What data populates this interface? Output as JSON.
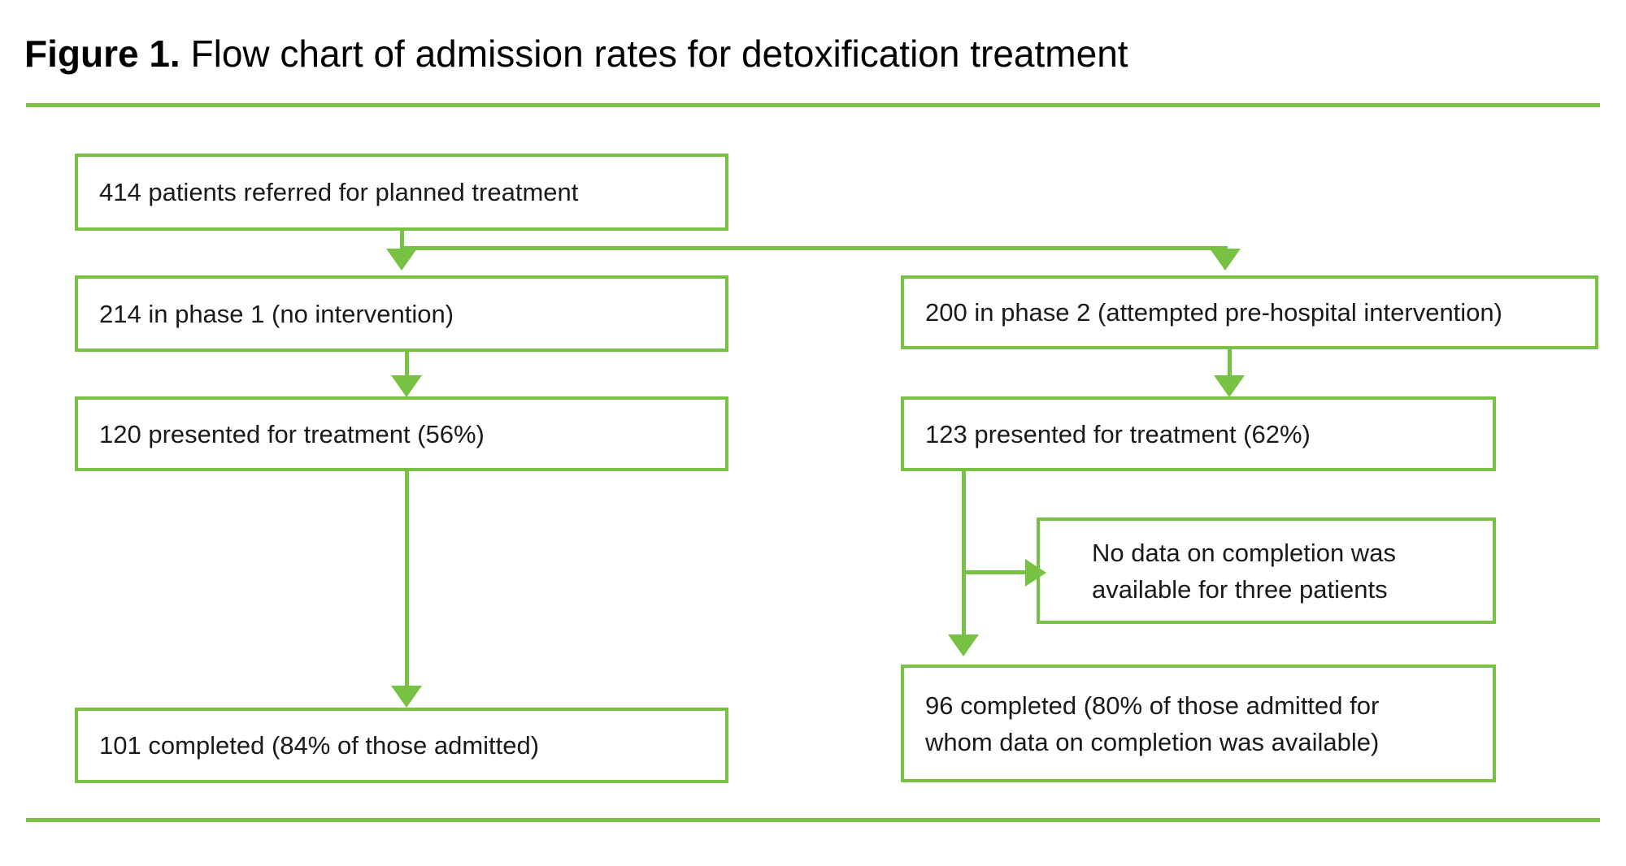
{
  "figure": {
    "title_bold": "Figure 1.",
    "title_rest": " Flow chart of admission rates for detoxification treatment"
  },
  "colors": {
    "green": "#77C143",
    "text": "#1a1a1a",
    "bg": "#ffffff"
  },
  "nodes": {
    "referred": {
      "label": "414 patients referred for planned treatment"
    },
    "phase1": {
      "label": "214 in phase 1 (no intervention)"
    },
    "phase1_presented": {
      "label": "120 presented for treatment (56%)"
    },
    "phase1_completed": {
      "label": "101 completed (84% of those admitted)"
    },
    "phase2": {
      "label": "200 in phase 2 (attempted pre-hospital intervention)"
    },
    "phase2_presented": {
      "label": "123 presented for treatment (62%)"
    },
    "no_data": {
      "line1": "No data on completion was",
      "line2": "available for three patients"
    },
    "phase2_completed": {
      "line1": "96 completed (80% of those admitted for",
      "line2": "whom data on completion was available)"
    }
  },
  "edges": [
    {
      "from": "referred",
      "to": "phase1"
    },
    {
      "from": "referred",
      "to": "phase2"
    },
    {
      "from": "phase1",
      "to": "phase1_presented"
    },
    {
      "from": "phase1_presented",
      "to": "phase1_completed"
    },
    {
      "from": "phase2",
      "to": "phase2_presented"
    },
    {
      "from": "phase2_presented",
      "to": "no_data"
    },
    {
      "from": "phase2_presented",
      "to": "phase2_completed"
    }
  ]
}
